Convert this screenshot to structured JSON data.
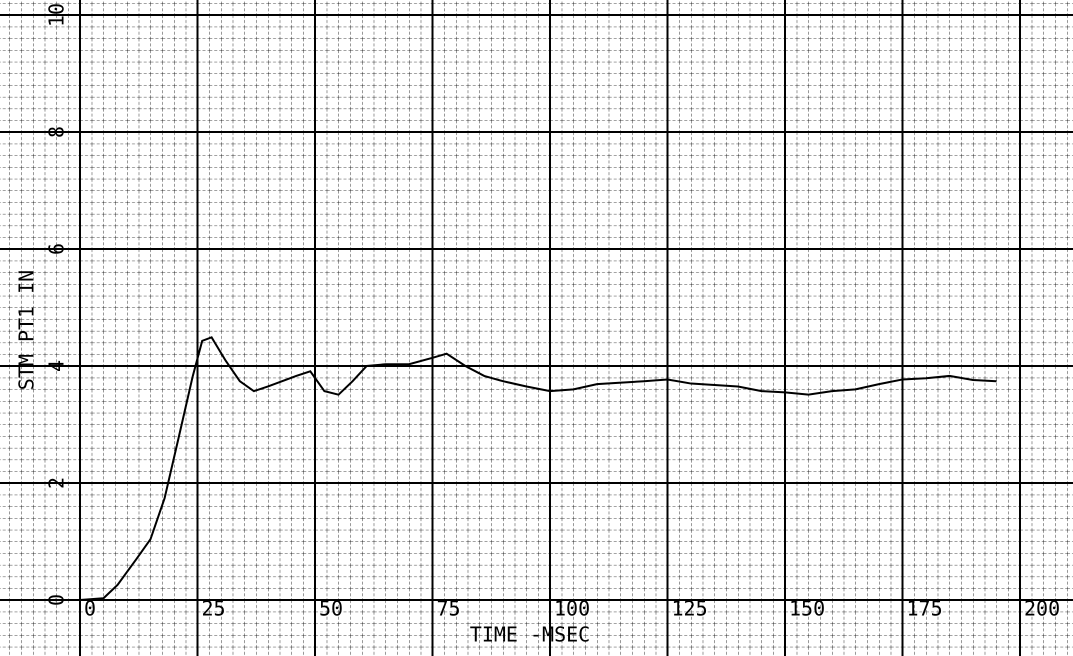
{
  "chart_data": {
    "type": "line",
    "x_label": "TIME -MSEC",
    "y_label": "STM PT1 IN",
    "xlim": [
      0,
      200
    ],
    "ylim": [
      0,
      10
    ],
    "xticks": [
      0,
      25,
      50,
      75,
      100,
      125,
      150,
      175,
      200
    ],
    "yticks": [
      0,
      2,
      4,
      6,
      8,
      10
    ],
    "grid": true,
    "x": [
      0,
      5,
      8,
      12,
      15,
      18,
      21,
      24,
      26,
      28,
      31,
      34,
      37,
      40,
      43,
      46,
      49,
      52,
      55,
      58,
      61,
      65,
      70,
      75,
      78,
      82,
      86,
      90,
      95,
      100,
      105,
      110,
      120,
      125,
      130,
      140,
      145,
      150,
      155,
      160,
      165,
      170,
      175,
      180,
      185,
      190,
      195
    ],
    "series": [
      {
        "color": "#000000",
        "values": [
          0,
          0.03,
          0.26,
          0.7,
          1.04,
          1.74,
          2.78,
          3.83,
          4.43,
          4.49,
          4.09,
          3.74,
          3.57,
          3.65,
          3.74,
          3.83,
          3.91,
          3.57,
          3.51,
          3.74,
          4.0,
          4.03,
          4.03,
          4.14,
          4.21,
          4.0,
          3.83,
          3.74,
          3.65,
          3.57,
          3.6,
          3.69,
          3.74,
          3.77,
          3.7,
          3.65,
          3.57,
          3.55,
          3.51,
          3.57,
          3.6,
          3.69,
          3.77,
          3.79,
          3.83,
          3.76,
          3.74
        ]
      }
    ]
  }
}
